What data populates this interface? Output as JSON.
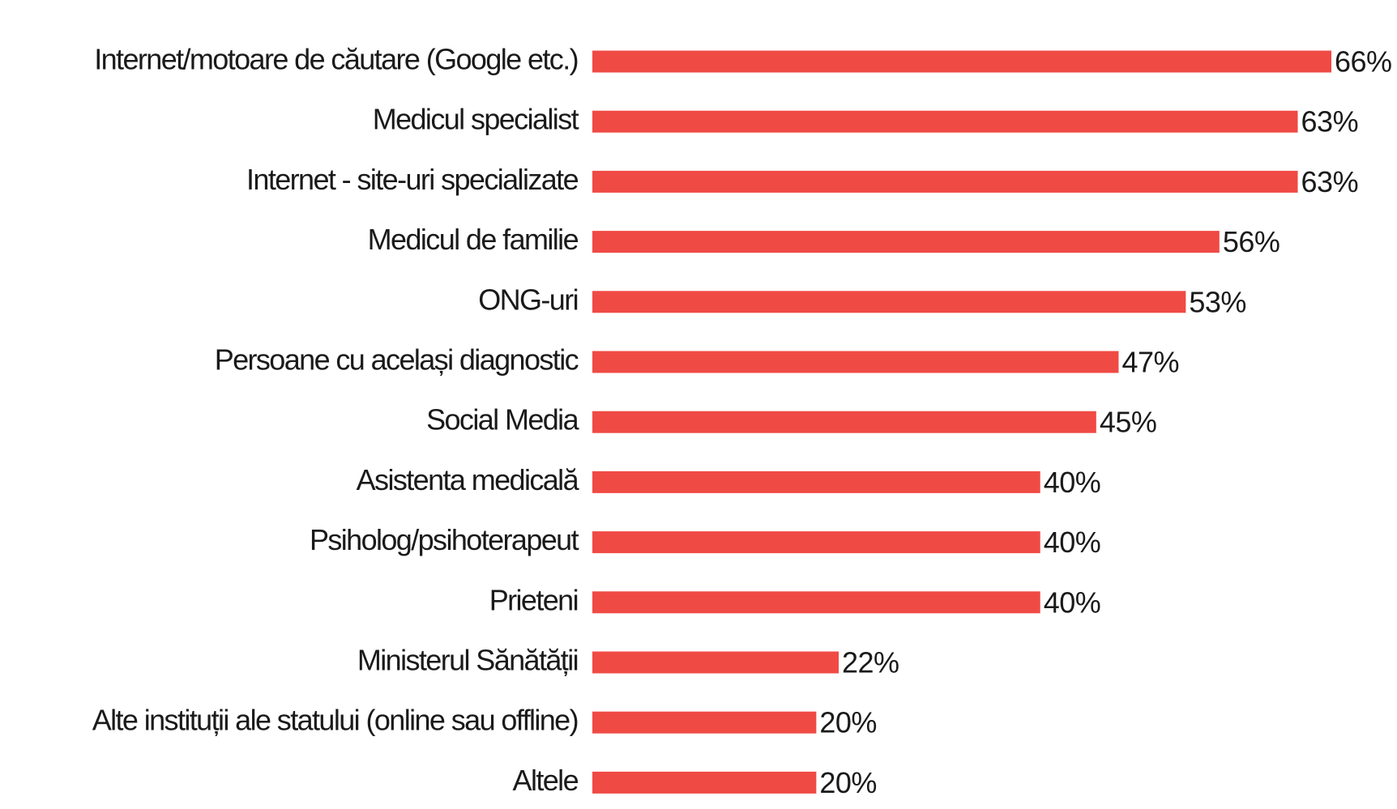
{
  "chart_data": {
    "type": "bar",
    "orientation": "horizontal",
    "color": "#f04a45",
    "categories": [
      "Internet/motoare de căutare (Google etc.)",
      "Medicul specialist",
      "Internet - site-uri specializate",
      "Medicul de familie",
      "ONG-uri",
      "Persoane cu același diagnostic",
      "Social Media",
      "Asistenta medicală",
      "Psiholog/psihoterapeut",
      "Prieteni",
      "Ministerul Sănătății",
      "Alte instituții ale statului (online sau offline)",
      "Altele"
    ],
    "values": [
      66,
      63,
      63,
      56,
      53,
      47,
      45,
      40,
      40,
      40,
      22,
      20,
      20
    ],
    "value_labels": [
      "66%",
      "63%",
      "63%",
      "56%",
      "53%",
      "47%",
      "45%",
      "40%",
      "40%",
      "40%",
      "22%",
      "20%",
      "20%"
    ]
  }
}
